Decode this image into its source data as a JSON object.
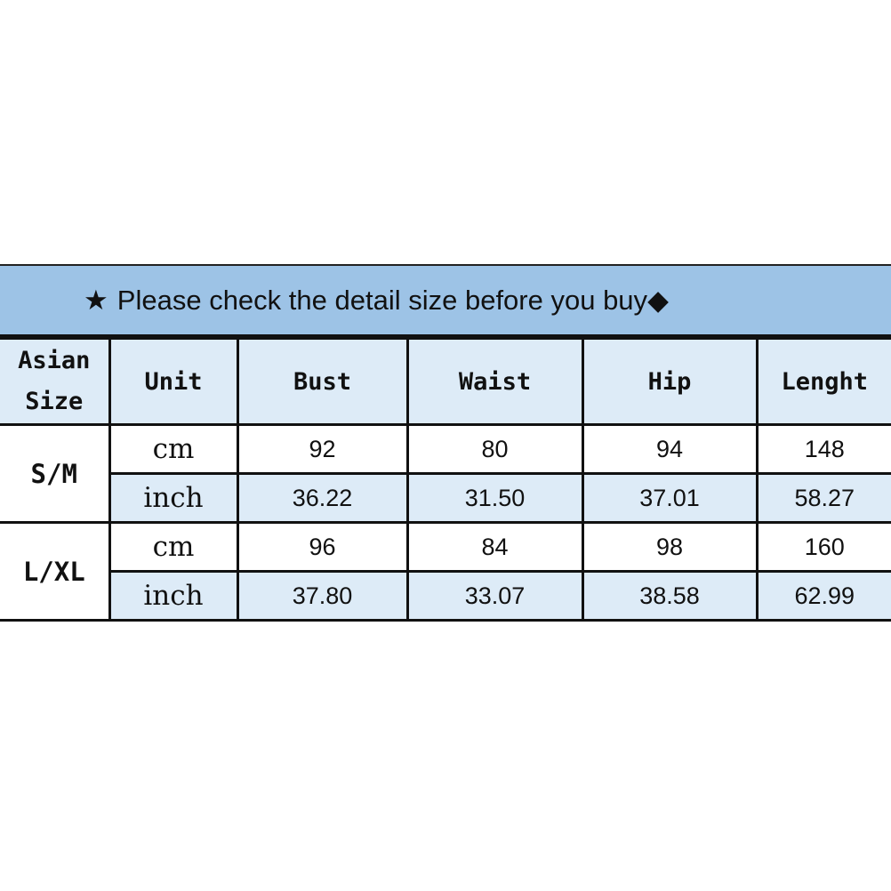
{
  "banner": {
    "star": "★",
    "text": "Please check the detail size before you buy",
    "diamond": "◆"
  },
  "headers": [
    "Asian Size",
    "Unit",
    "Bust",
    "Waist",
    "Hip",
    "Lenght"
  ],
  "rows": [
    {
      "size": "S/M",
      "cm": {
        "unit": "cm",
        "values": [
          "92",
          "80",
          "94",
          "148"
        ]
      },
      "inch": {
        "unit": "inch",
        "values": [
          "36.22",
          "31.50",
          "37.01",
          "58.27"
        ]
      }
    },
    {
      "size": "L/XL",
      "cm": {
        "unit": "cm",
        "values": [
          "96",
          "84",
          "98",
          "160"
        ]
      },
      "inch": {
        "unit": "inch",
        "values": [
          "37.80",
          "33.07",
          "38.58",
          "62.99"
        ]
      }
    }
  ],
  "colors": {
    "banner": "#9dc3e6",
    "light": "#ddebf7"
  }
}
